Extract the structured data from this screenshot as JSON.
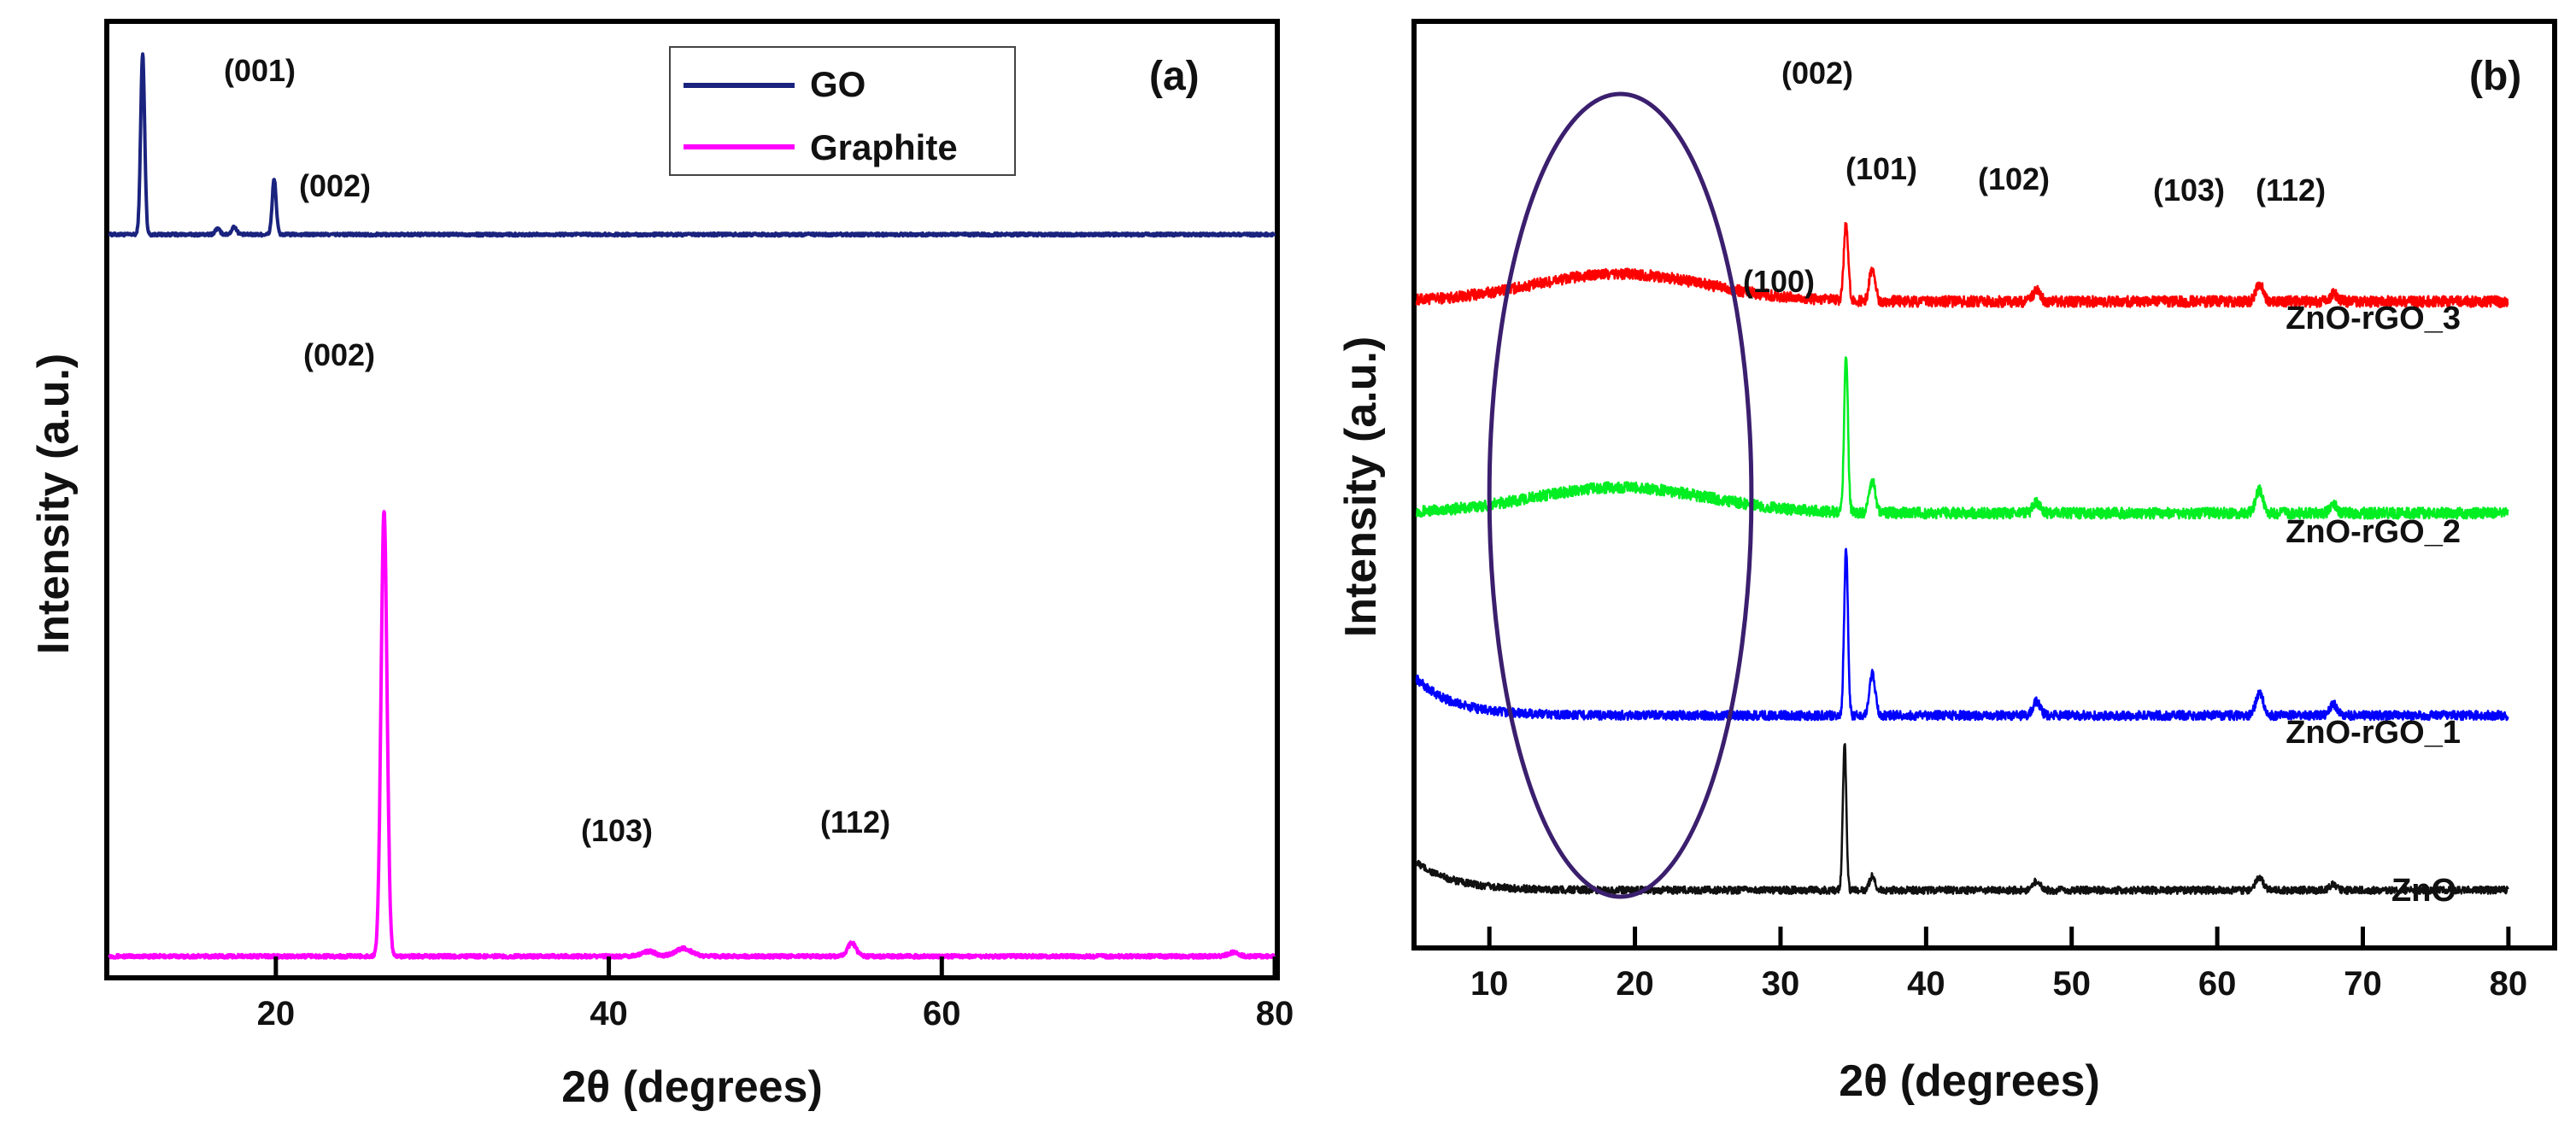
{
  "chart_data": [
    {
      "type": "line",
      "panel_label": "(a)",
      "xlabel": "2θ (degrees)",
      "ylabel": "Intensity (a.u.)",
      "xlim": [
        10,
        80
      ],
      "xticks": [
        20,
        40,
        60,
        80
      ],
      "series": [
        {
          "name": "GO",
          "color": "#1a237e",
          "baseline": 0.78,
          "peaks": [
            {
              "x": 12.0,
              "height": 0.19,
              "width": 0.12
            },
            {
              "x": 16.5,
              "height": 0.006,
              "width": 0.15
            },
            {
              "x": 17.5,
              "height": 0.008,
              "width": 0.15
            },
            {
              "x": 19.9,
              "height": 0.058,
              "width": 0.12
            }
          ],
          "noise": 0.0015
        },
        {
          "name": "Graphite",
          "color": "#ff00ff",
          "baseline": 0.02,
          "peaks": [
            {
              "x": 26.5,
              "height": 0.47,
              "width": 0.18
            },
            {
              "x": 42.4,
              "height": 0.005,
              "width": 0.4
            },
            {
              "x": 44.5,
              "height": 0.008,
              "width": 0.5
            },
            {
              "x": 54.6,
              "height": 0.014,
              "width": 0.25
            },
            {
              "x": 77.5,
              "height": 0.004,
              "width": 0.3
            }
          ],
          "noise": 0.0018
        }
      ],
      "annotations": [
        "(001)",
        "(002)",
        "(002)",
        "(103)",
        "(112)"
      ]
    },
    {
      "type": "line",
      "panel_label": "(b)",
      "xlabel": "2θ (degrees)",
      "ylabel": "Intensity (a.u.)",
      "xlim": [
        5,
        83
      ],
      "xticks": [
        10,
        20,
        30,
        40,
        50,
        60,
        70,
        80
      ],
      "x_range_plotted": [
        5,
        80
      ],
      "highlight_ellipse": {
        "center_x": 19,
        "x_half_width": 9,
        "color": "#3b1f6e"
      },
      "series": [
        {
          "name": "ZnO-rGO_3",
          "color": "#ff0000",
          "baseline": 0.7,
          "broad_hump": {
            "center": 19,
            "width": 6,
            "height": 0.03
          },
          "peaks": [
            {
              "x": 34.5,
              "height": 0.085,
              "width": 0.15
            },
            {
              "x": 36.3,
              "height": 0.035,
              "width": 0.2
            },
            {
              "x": 47.6,
              "height": 0.012,
              "width": 0.25
            },
            {
              "x": 62.9,
              "height": 0.02,
              "width": 0.25
            },
            {
              "x": 68.0,
              "height": 0.008,
              "width": 0.25
            }
          ],
          "noise": 0.006
        },
        {
          "name": "ZnO-rGO_2",
          "color": "#00ee22",
          "baseline": 0.47,
          "broad_hump": {
            "center": 19,
            "width": 6,
            "height": 0.028
          },
          "peaks": [
            {
              "x": 34.5,
              "height": 0.17,
              "width": 0.13
            },
            {
              "x": 36.3,
              "height": 0.035,
              "width": 0.2
            },
            {
              "x": 47.6,
              "height": 0.012,
              "width": 0.25
            },
            {
              "x": 62.9,
              "height": 0.025,
              "width": 0.25
            },
            {
              "x": 68.0,
              "height": 0.008,
              "width": 0.25
            }
          ],
          "noise": 0.006
        },
        {
          "name": "ZnO-rGO_1",
          "color": "#0000ff",
          "baseline": 0.25,
          "decay": {
            "height": 0.04,
            "tau": 2.5
          },
          "peaks": [
            {
              "x": 34.5,
              "height": 0.18,
              "width": 0.13
            },
            {
              "x": 36.3,
              "height": 0.045,
              "width": 0.2
            },
            {
              "x": 47.6,
              "height": 0.015,
              "width": 0.25
            },
            {
              "x": 62.9,
              "height": 0.025,
              "width": 0.25
            },
            {
              "x": 68.0,
              "height": 0.012,
              "width": 0.25
            }
          ],
          "noise": 0.005
        },
        {
          "name": "ZnO",
          "color": "#111111",
          "baseline": 0.06,
          "decay": {
            "height": 0.03,
            "tau": 2.5
          },
          "peaks": [
            {
              "x": 34.4,
              "height": 0.16,
              "width": 0.12
            },
            {
              "x": 36.3,
              "height": 0.015,
              "width": 0.2
            },
            {
              "x": 47.6,
              "height": 0.01,
              "width": 0.25
            },
            {
              "x": 62.9,
              "height": 0.014,
              "width": 0.25
            },
            {
              "x": 68.0,
              "height": 0.006,
              "width": 0.25
            }
          ],
          "noise": 0.004
        }
      ],
      "annotations": [
        "(002)",
        "(101)",
        "(102)",
        "(103)",
        "(112)",
        "(100)"
      ]
    }
  ]
}
